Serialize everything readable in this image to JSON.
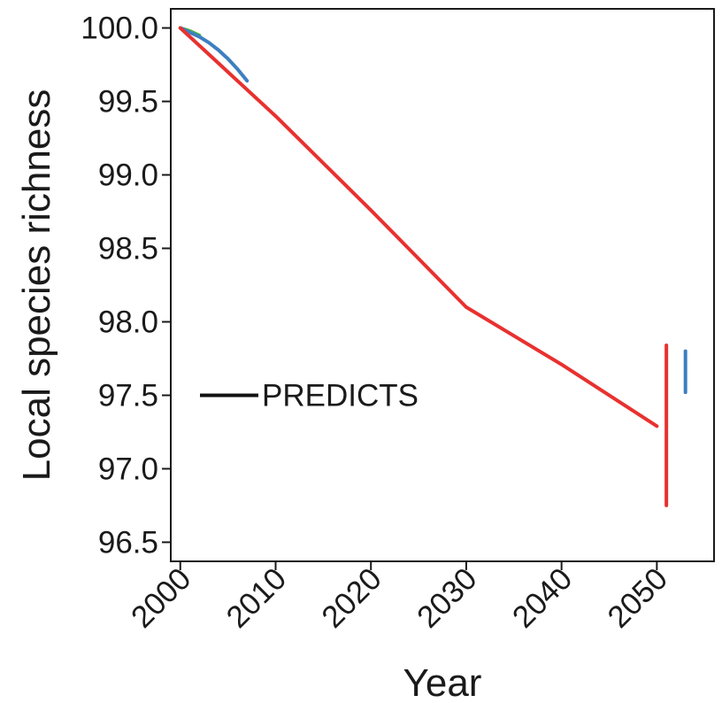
{
  "chart_data": {
    "type": "line",
    "title": "",
    "xlabel": "Year",
    "ylabel": "Local species richness",
    "xlim": [
      1999,
      2056
    ],
    "ylim": [
      96.37,
      100.13
    ],
    "x_ticks": [
      2000,
      2010,
      2020,
      2030,
      2040,
      2050
    ],
    "x_tick_labels": [
      "2000",
      "2010",
      "2020",
      "2030",
      "2040",
      "2050"
    ],
    "y_ticks": [
      96.5,
      97.0,
      97.5,
      98.0,
      98.5,
      99.0,
      99.5,
      100.0
    ],
    "y_tick_labels": [
      "96.5",
      "97.0",
      "97.5",
      "98.0",
      "98.5",
      "99.0",
      "99.5",
      "100.0"
    ],
    "grid": false,
    "legend": {
      "placement": "left",
      "entries": [
        {
          "label": "PREDICTS",
          "color": "#111111"
        }
      ]
    },
    "series": [
      {
        "color": "#e8312f",
        "x": [
          2000,
          2010,
          2020,
          2030,
          2040,
          2050
        ],
        "y": [
          100.0,
          99.4,
          98.76,
          98.1,
          97.71,
          97.29
        ]
      },
      {
        "color": "#3d7fc0",
        "x": [
          2000,
          2001,
          2002,
          2003,
          2004,
          2005,
          2006,
          2007
        ],
        "y": [
          100.0,
          99.97,
          99.94,
          99.9,
          99.85,
          99.79,
          99.72,
          99.64
        ]
      },
      {
        "color": "#4daf4a",
        "x": [
          2000,
          2001,
          2002
        ],
        "y": [
          100.0,
          99.98,
          99.95
        ]
      }
    ],
    "end_ranges": [
      {
        "color": "#e8312f",
        "x": 2051,
        "y_low": 96.75,
        "y_high": 97.84
      },
      {
        "color": "#3d7fc0",
        "x": 2053,
        "y_low": 97.52,
        "y_high": 97.8
      }
    ]
  }
}
